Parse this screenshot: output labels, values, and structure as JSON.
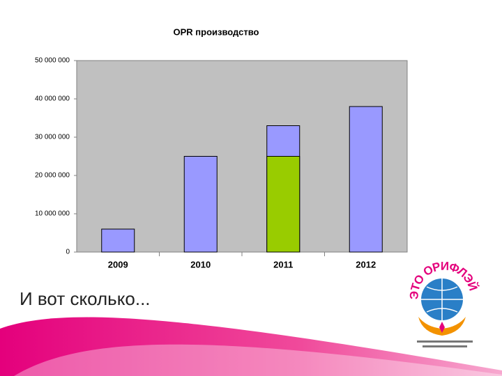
{
  "chart_data": {
    "type": "bar",
    "title": "OPR производство",
    "categories": [
      "2009",
      "2010",
      "2011",
      "2012"
    ],
    "series": [
      {
        "color": "#9999ff",
        "values": [
          6000000,
          25000000,
          33000000,
          38000000
        ]
      },
      {
        "color": "#99cc00",
        "values": [
          null,
          null,
          25000000,
          null
        ]
      }
    ],
    "ylim": [
      0,
      50000000
    ],
    "yticks": [
      0,
      {
        "value": 10000000,
        "label": "10 000 000"
      },
      {
        "value": 20000000,
        "label": "20 000 000"
      },
      {
        "value": 30000000,
        "label": "30 000 000"
      },
      {
        "value": 40000000,
        "label": "40 000 000"
      },
      {
        "value": 50000000,
        "label": "50 000 000"
      }
    ],
    "plot_background": "#c0c0c0"
  },
  "caption": "И вот сколько...",
  "logo": {
    "text": "ЭТО ОРИФЛЭЙМ"
  }
}
